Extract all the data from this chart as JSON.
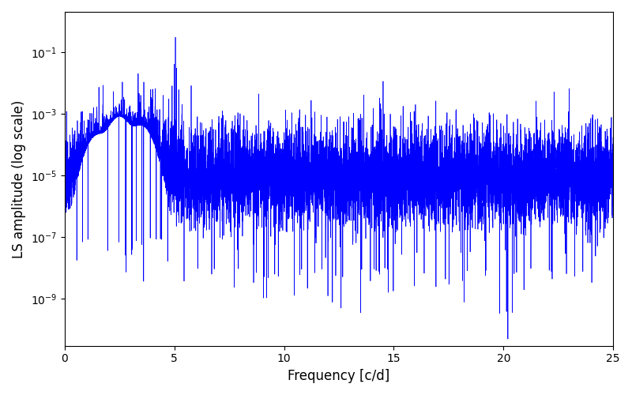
{
  "xlabel": "Frequency [c/d]",
  "ylabel": "LS amplitude (log scale)",
  "xlim": [
    0,
    25
  ],
  "ylim_log": [
    3e-11,
    2.0
  ],
  "line_color": "#0000ff",
  "line_width": 0.5,
  "figsize": [
    8.0,
    5.0
  ],
  "dpi": 100,
  "freq_max": 25.0,
  "n_points": 8000,
  "peak_freq": 5.05,
  "peak_amplitude": 0.3,
  "background_level": 1e-05,
  "seed": 12345
}
